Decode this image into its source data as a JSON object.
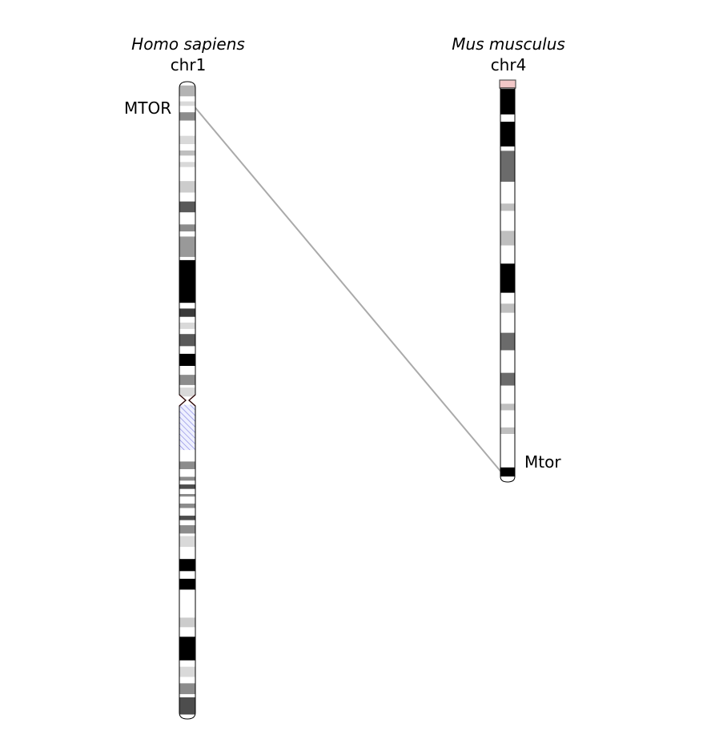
{
  "human": {
    "species": "Homo sapiens",
    "chromosome": "chr1",
    "gene": "MTOR",
    "bands": [
      {
        "s": 0.006,
        "e": 0.023,
        "c": "#b3b3b3"
      },
      {
        "s": 0.031,
        "e": 0.038,
        "c": "#d9d9d9"
      },
      {
        "s": 0.048,
        "e": 0.061,
        "c": "#8c8c8c"
      },
      {
        "s": 0.085,
        "e": 0.098,
        "c": "#d9d9d9"
      },
      {
        "s": 0.108,
        "e": 0.116,
        "c": "#bfbfbf"
      },
      {
        "s": 0.126,
        "e": 0.134,
        "c": "#d9d9d9"
      },
      {
        "s": 0.156,
        "e": 0.174,
        "c": "#cccccc"
      },
      {
        "s": 0.188,
        "e": 0.205,
        "c": "#595959"
      },
      {
        "s": 0.224,
        "e": 0.235,
        "c": "#8c8c8c"
      },
      {
        "s": 0.243,
        "e": 0.275,
        "c": "#999999"
      },
      {
        "s": 0.28,
        "e": 0.347,
        "c": "#000000"
      },
      {
        "s": 0.356,
        "e": 0.369,
        "c": "#3a3a3a"
      },
      {
        "s": 0.378,
        "e": 0.388,
        "c": "#d9d9d9"
      },
      {
        "s": 0.396,
        "e": 0.415,
        "c": "#595959"
      },
      {
        "s": 0.427,
        "e": 0.446,
        "c": "#000000"
      },
      {
        "s": 0.46,
        "e": 0.476,
        "c": "#8c8c8c"
      },
      {
        "s": 0.48,
        "e": 0.494,
        "c": "#d9d9d9"
      },
      {
        "s": 0.596,
        "e": 0.608,
        "c": "#8c8c8c"
      },
      {
        "s": 0.62,
        "e": 0.626,
        "c": "#8c8c8c"
      },
      {
        "s": 0.632,
        "e": 0.639,
        "c": "#4d4d4d"
      },
      {
        "s": 0.647,
        "e": 0.651,
        "c": "#8c8c8c"
      },
      {
        "s": 0.662,
        "e": 0.669,
        "c": "#8c8c8c"
      },
      {
        "s": 0.681,
        "e": 0.688,
        "c": "#4d4d4d"
      },
      {
        "s": 0.696,
        "e": 0.709,
        "c": "#8c8c8c"
      },
      {
        "s": 0.713,
        "e": 0.73,
        "c": "#d9d9d9"
      },
      {
        "s": 0.749,
        "e": 0.768,
        "c": "#000000"
      },
      {
        "s": 0.78,
        "e": 0.797,
        "c": "#000000"
      },
      {
        "s": 0.841,
        "e": 0.856,
        "c": "#cccccc"
      },
      {
        "s": 0.871,
        "e": 0.908,
        "c": "#000000"
      },
      {
        "s": 0.918,
        "e": 0.934,
        "c": "#d9d9d9"
      },
      {
        "s": 0.944,
        "e": 0.961,
        "c": "#8c8c8c"
      },
      {
        "s": 0.966,
        "e": 0.993,
        "c": "#4d4d4d"
      }
    ],
    "centromere": 0.5,
    "heterochromatin": [
      0.507,
      0.578
    ],
    "gene_position": 0.041
  },
  "mouse": {
    "species": "Mus musculus",
    "chromosome": "chr4",
    "gene": "Mtor",
    "bands": [
      {
        "s": 0.02,
        "e": 0.09,
        "c": "#000000"
      },
      {
        "s": 0.11,
        "e": 0.178,
        "c": "#000000"
      },
      {
        "s": 0.19,
        "e": 0.275,
        "c": "#6b6b6b"
      },
      {
        "s": 0.335,
        "e": 0.355,
        "c": "#bfbfbf"
      },
      {
        "s": 0.41,
        "e": 0.45,
        "c": "#bfbfbf"
      },
      {
        "s": 0.5,
        "e": 0.58,
        "c": "#000000"
      },
      {
        "s": 0.61,
        "e": 0.635,
        "c": "#bfbfbf"
      },
      {
        "s": 0.69,
        "e": 0.738,
        "c": "#6b6b6b"
      },
      {
        "s": 0.8,
        "e": 0.835,
        "c": "#6b6b6b"
      },
      {
        "s": 0.885,
        "e": 0.903,
        "c": "#bfbfbf"
      },
      {
        "s": 0.95,
        "e": 0.968,
        "c": "#bfbfbf"
      },
      {
        "s": 1.06,
        "e": 1.085,
        "c": "#000000"
      }
    ],
    "telomere_color": "#f2c8c8",
    "gene_position": 1.07
  },
  "colors": {
    "link": "#aaaaaa",
    "outline": "#000000",
    "heterochromatin_stripe": "#8080e0",
    "heterochromatin_fill": "#eef0ff",
    "centromere": "#d46a6a"
  }
}
